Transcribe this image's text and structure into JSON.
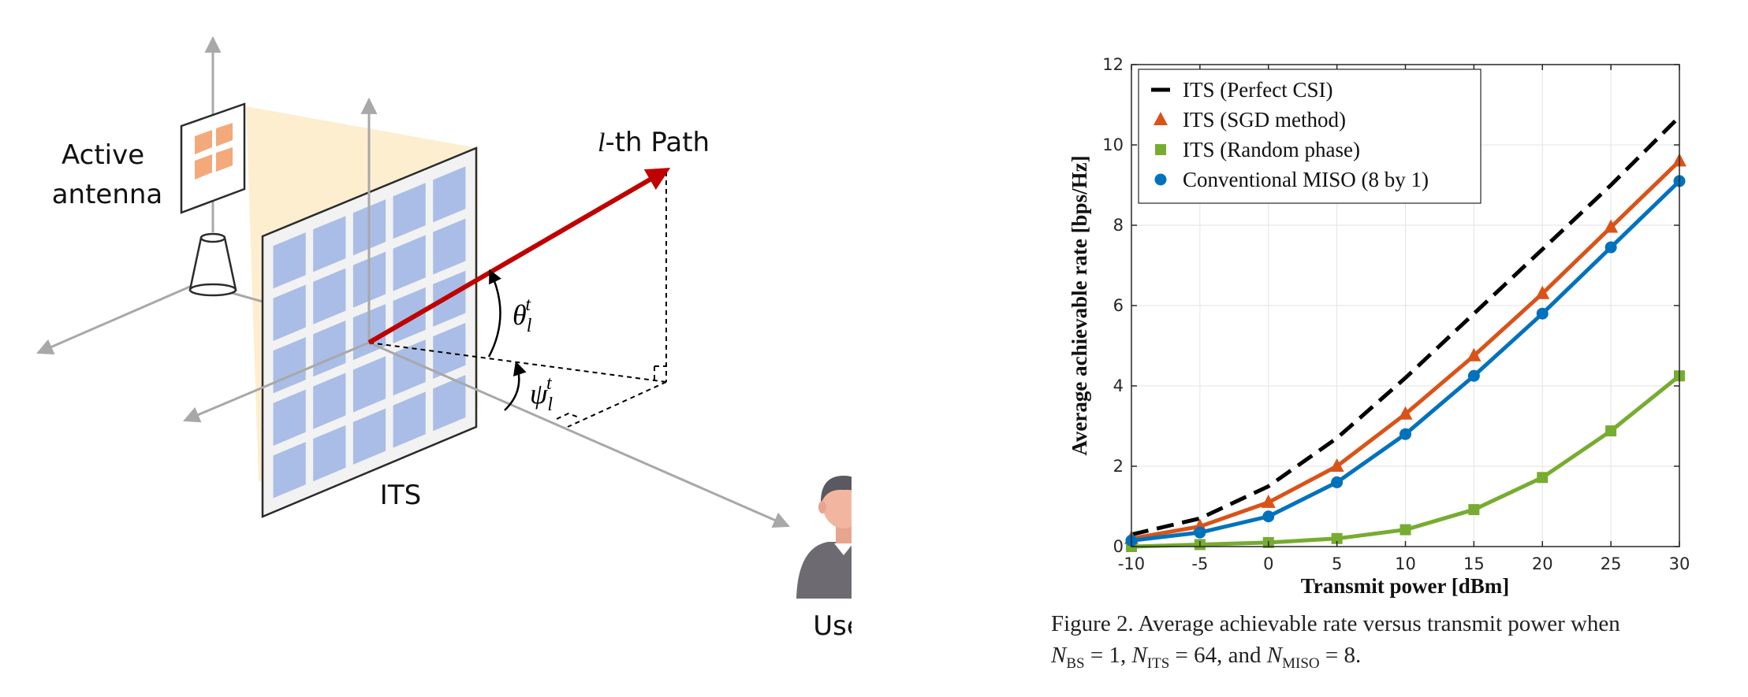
{
  "diagram": {
    "labels": {
      "active_antenna_line1": "Active",
      "active_antenna_line2": "antenna",
      "path_l": "l",
      "path_rest": "-th Path",
      "its": "ITS",
      "user": "User",
      "theta_base": "θ",
      "theta_sub": "l",
      "theta_sup": "t",
      "psi_base": "ψ",
      "psi_sub": "l",
      "psi_sup": "t"
    },
    "colors": {
      "path_arrow": "#c00000",
      "its_cell": "#a9bde6",
      "its_panel": "#f2f2f2",
      "antenna_cell": "#f4a97a",
      "beam_fill": "#fdebc8",
      "axis": "#a8a8a8"
    },
    "icons": [
      "active-antenna-icon",
      "user-icon"
    ]
  },
  "chart_data": {
    "type": "line",
    "xlabel": "Transmit power [dBm]",
    "ylabel": "Average achievable rate [bps/Hz]",
    "xlim": [
      -10,
      30
    ],
    "ylim": [
      0,
      12
    ],
    "xticks": [
      "-10",
      "-5",
      "0",
      "5",
      "10",
      "15",
      "20",
      "25",
      "30"
    ],
    "yticks": [
      "0",
      "2",
      "4",
      "6",
      "8",
      "10",
      "12"
    ],
    "grid": true,
    "legend_position": "top-left",
    "x": [
      -10,
      -5,
      0,
      5,
      10,
      15,
      20,
      25,
      30
    ],
    "series": [
      {
        "name": "ITS (Perfect CSI)",
        "color": "#000000",
        "style": "dashed",
        "marker": "none",
        "values": [
          0.3,
          0.7,
          1.5,
          2.7,
          4.2,
          5.8,
          7.4,
          9.0,
          10.7
        ]
      },
      {
        "name": "ITS (SGD method)",
        "color": "#d95319",
        "style": "solid",
        "marker": "triangle",
        "values": [
          0.2,
          0.5,
          1.1,
          2.0,
          3.3,
          4.75,
          6.3,
          7.95,
          9.6
        ]
      },
      {
        "name": "ITS (Random phase)",
        "color": "#77ac30",
        "style": "solid",
        "marker": "square",
        "values": [
          0.0,
          0.05,
          0.1,
          0.2,
          0.42,
          0.92,
          1.72,
          2.88,
          4.25
        ]
      },
      {
        "name": "Conventional MISO (8 by 1)",
        "color": "#0072bd",
        "style": "solid",
        "marker": "circle",
        "values": [
          0.15,
          0.35,
          0.75,
          1.6,
          2.8,
          4.25,
          5.8,
          7.45,
          9.1
        ]
      }
    ]
  },
  "caption": {
    "prefix": "Figure 2.  Average achievable rate versus transmit power when",
    "n_sym": "N",
    "bs_sub": "BS",
    "bs_val": " = 1, ",
    "its_sub": "ITS",
    "its_val": " = 64, and ",
    "miso_sub": "MISO",
    "miso_val": " = 8."
  }
}
